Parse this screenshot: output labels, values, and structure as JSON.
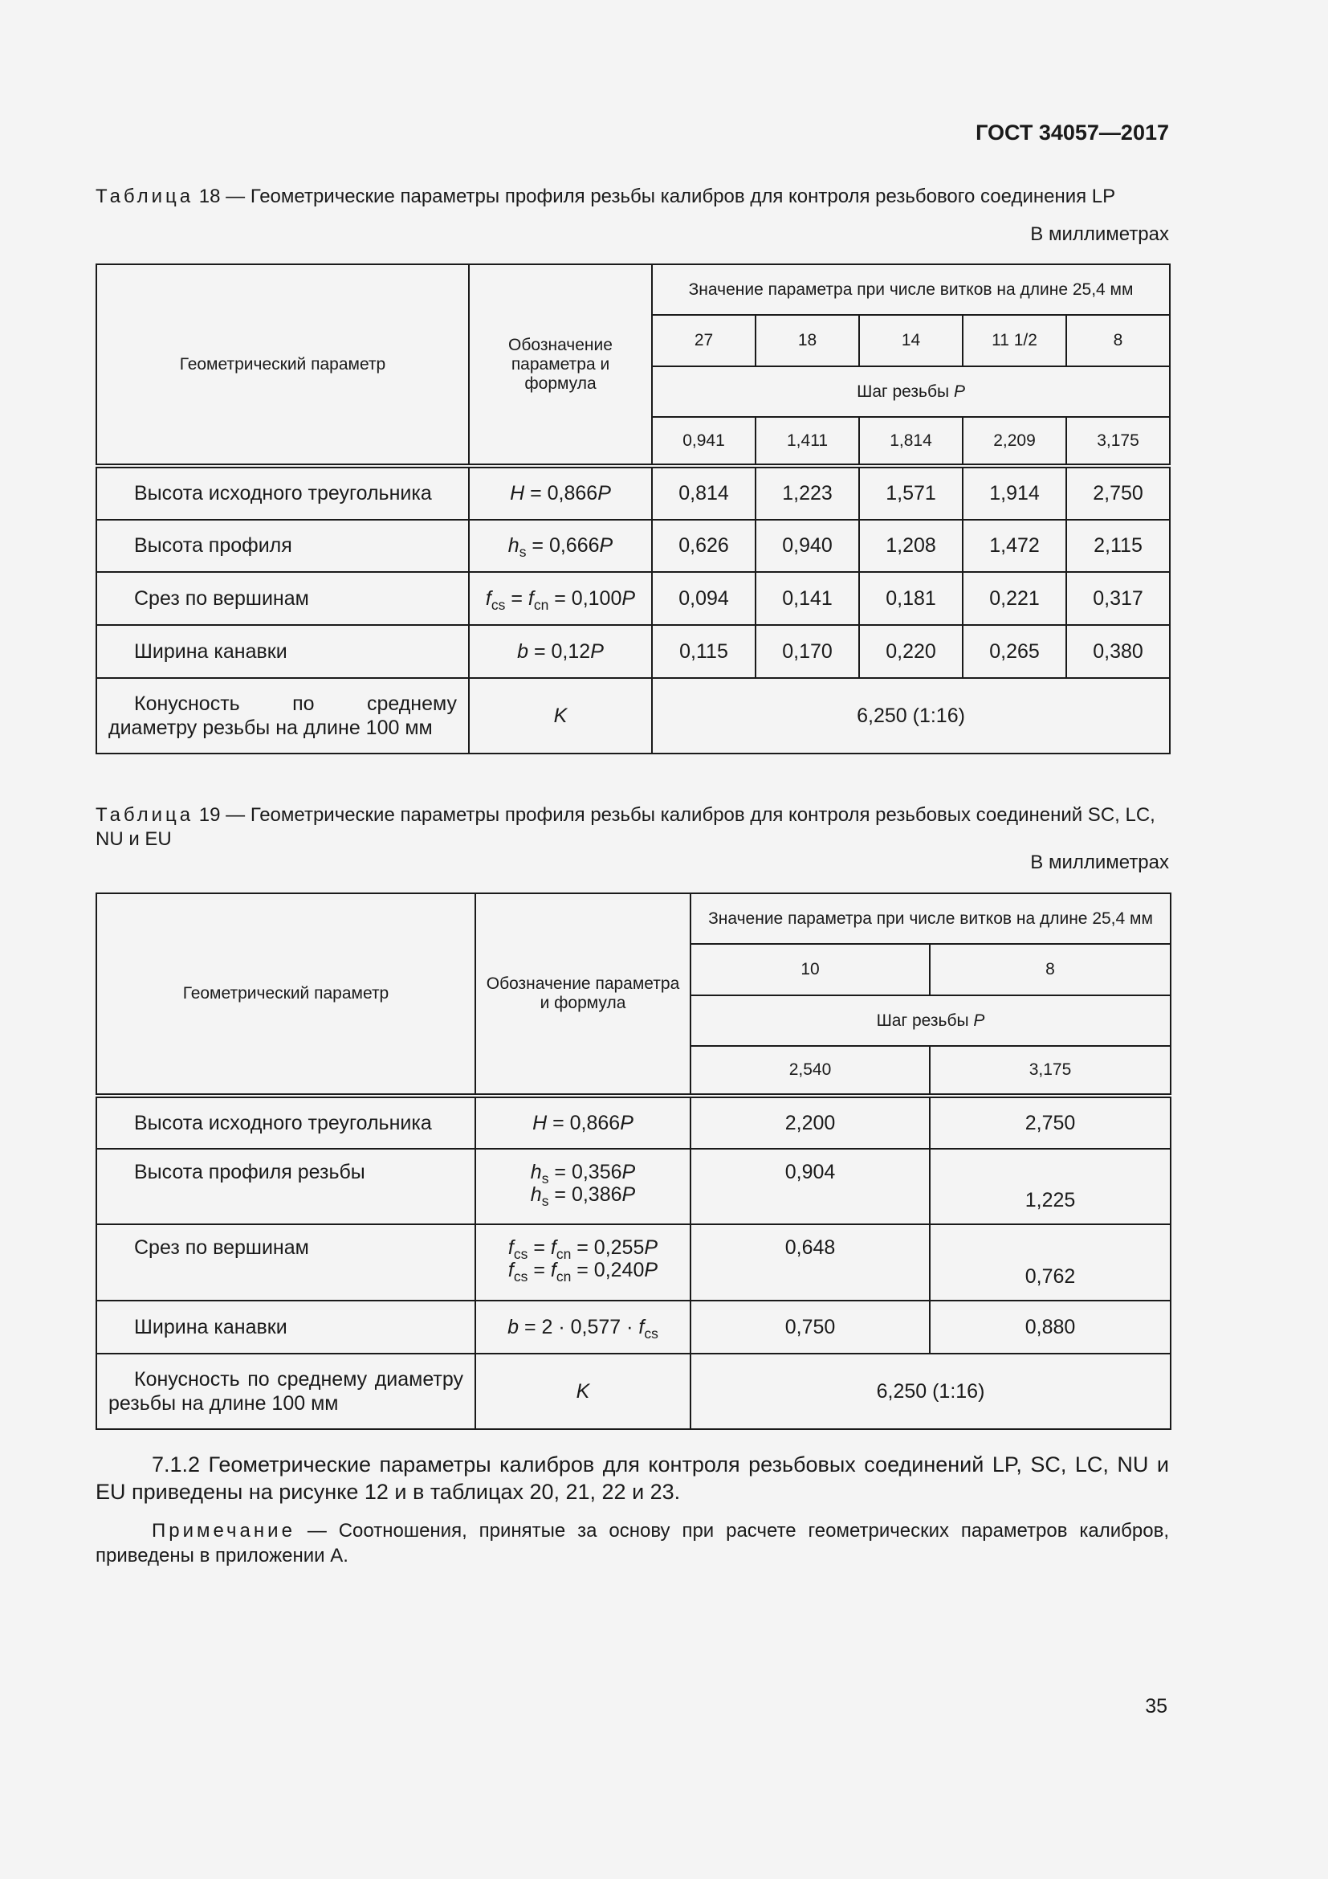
{
  "header": {
    "doc_id": "ГОСТ 34057—2017"
  },
  "table18": {
    "caption_word": "Таблица",
    "caption_text": "18 — Геометрические параметры профиля резьбы калибров для контроля резьбового соединения LP",
    "units": "В миллиметрах",
    "head": {
      "param": "Геометрический параметр",
      "designation": "Обозначение параметра и формула",
      "value_group": "Значение параметра при числе витков на длине 25,4 мм",
      "turns": [
        "27",
        "18",
        "14",
        "11 1/2",
        "8"
      ],
      "pitch_label": "Шаг резьбы",
      "pitch_symbol": "P",
      "pitches": [
        "0,941",
        "1,411",
        "1,814",
        "2,209",
        "3,175"
      ]
    },
    "rows": [
      {
        "param": "Высота исходного треугольника",
        "formula": "H = 0,866P",
        "values": [
          "0,814",
          "1,223",
          "1,571",
          "1,914",
          "2,750"
        ]
      },
      {
        "param": "Высота профиля",
        "formula": "hs = 0,666P",
        "values": [
          "0,626",
          "0,940",
          "1,208",
          "1,472",
          "2,115"
        ]
      },
      {
        "param": "Срез по вершинам",
        "formula": "fcs = fcn = 0,100P",
        "values": [
          "0,094",
          "0,141",
          "0,181",
          "0,221",
          "0,317"
        ]
      },
      {
        "param": "Ширина канавки",
        "formula": "b = 0,12P",
        "values": [
          "0,115",
          "0,170",
          "0,220",
          "0,265",
          "0,380"
        ]
      },
      {
        "param": "Конусность по среднему диаметру резьбы на длине 100 мм",
        "formula": "K",
        "value": "6,250 (1:16)"
      }
    ]
  },
  "table19": {
    "caption_word": "Таблица",
    "caption_text": "19 — Геометрические параметры профиля резьбы калибров для контроля резьбовых соединений SC, LC, NU и EU",
    "units": "В миллиметрах",
    "head": {
      "param": "Геометрический параметр",
      "designation": "Обозначение параметра и формула",
      "value_group": "Значение параметра при числе витков на длине 25,4 мм",
      "turns": [
        "10",
        "8"
      ],
      "pitch_label": "Шаг резьбы",
      "pitch_symbol": "P",
      "pitches": [
        "2,540",
        "3,175"
      ]
    },
    "rows": [
      {
        "param": "Высота исходного треугольника",
        "formula": "H = 0,866P",
        "values": [
          "2,200",
          "2,750"
        ]
      },
      {
        "param": "Высота профиля резьбы",
        "formula": [
          "hs = 0,356P",
          "hs = 0,386P"
        ],
        "values": [
          "0,904",
          "1,225"
        ]
      },
      {
        "param": "Срез по вершинам",
        "formula": [
          "fcs = fcn = 0,255P",
          "fcs = fcn = 0,240P"
        ],
        "values": [
          "0,648",
          "0,762"
        ]
      },
      {
        "param": "Ширина канавки",
        "formula": "b = 2 · 0,577 · fcs",
        "values": [
          "0,750",
          "0,880"
        ]
      },
      {
        "param": "Конусность по среднему диаметру резьбы на длине 100 мм",
        "formula": "K",
        "value": "6,250 (1:16)"
      }
    ]
  },
  "paragraph": "7.1.2 Геометрические параметры калибров для контроля резьбовых соединений LP, SC, LC, NU и EU приведены на рисунке 12 и в таблицах 20, 21, 22 и 23.",
  "note": {
    "label": "Примечание",
    "text": "— Соотношения, принятые за основу при расчете геометрических параметров калибров, приведены в приложении А."
  },
  "page_number": "35"
}
